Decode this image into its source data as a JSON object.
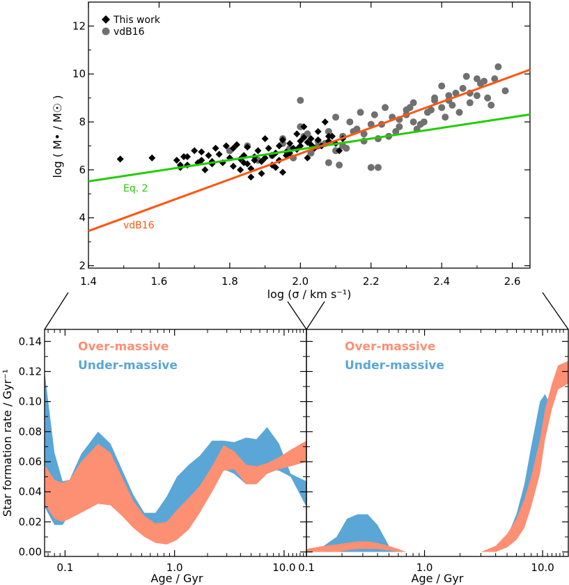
{
  "colors": {
    "green": "#22cc00",
    "orange": "#ff5511",
    "grey": "#707070",
    "over": "#fd8f73",
    "under": "#5aa6d6"
  },
  "chart_data": [
    {
      "type": "scatter",
      "xlabel": "log (σ / km s⁻¹)",
      "ylabel": "log ( M• / M☉ )",
      "xlim": [
        1.4,
        2.65
      ],
      "ylim": [
        1.9,
        13.0
      ],
      "xticks": [
        "1.4",
        "1.6",
        "1.8",
        "2.0",
        "2.2",
        "2.4",
        "2.6"
      ],
      "yticks": [
        "2",
        "4",
        "6",
        "8",
        "10",
        "12"
      ],
      "legend": {
        "placement": "top-left",
        "entries": [
          "This work",
          "vdB16"
        ]
      },
      "lines": [
        {
          "name": "Eq. 2",
          "x": [
            1.4,
            2.65
          ],
          "y": [
            5.52,
            8.31
          ]
        },
        {
          "name": "vdB16",
          "x": [
            1.4,
            2.65
          ],
          "y": [
            3.45,
            10.18
          ]
        }
      ],
      "series": [
        {
          "name": "This work",
          "marker": "diamond",
          "x": [
            1.49,
            1.58,
            1.65,
            1.66,
            1.67,
            1.68,
            1.7,
            1.71,
            1.72,
            1.73,
            1.74,
            1.75,
            1.76,
            1.78,
            1.79,
            1.8,
            1.81,
            1.82,
            1.83,
            1.84,
            1.85,
            1.86,
            1.87,
            1.88,
            1.89,
            1.9,
            1.91,
            1.92,
            1.93,
            1.94,
            1.95,
            1.96,
            1.97,
            1.98,
            1.99,
            2.0,
            2.01,
            2.02,
            2.03,
            2.04,
            2.05,
            2.06,
            2.07,
            2.08,
            2.09,
            2.1,
            2.11,
            2.12,
            1.66,
            1.72,
            1.77,
            1.81,
            1.84,
            1.87,
            1.9,
            1.93,
            1.96,
            1.99,
            2.02,
            2.05,
            1.85,
            1.89,
            1.94,
            1.97,
            2.0,
            2.03,
            1.68,
            1.75,
            1.83,
            1.92,
            2.08,
            1.86,
            1.95,
            2.01
          ],
          "y": [
            6.45,
            6.5,
            6.4,
            6.1,
            6.55,
            6.2,
            6.8,
            6.3,
            6.75,
            6.0,
            6.6,
            6.25,
            6.9,
            6.3,
            7.0,
            6.5,
            6.9,
            7.05,
            6.0,
            6.6,
            6.95,
            5.7,
            6.4,
            6.8,
            6.35,
            7.3,
            6.9,
            6.2,
            6.7,
            7.0,
            5.9,
            6.6,
            7.1,
            6.9,
            7.5,
            7.2,
            7.8,
            6.5,
            7.3,
            6.9,
            7.6,
            7.0,
            8.0,
            7.2,
            7.4,
            7.1,
            6.8,
            7.3,
            6.2,
            6.4,
            6.65,
            6.15,
            6.3,
            6.55,
            6.5,
            6.1,
            6.75,
            6.85,
            7.15,
            7.25,
            6.25,
            5.85,
            6.4,
            6.7,
            7.0,
            7.05,
            6.55,
            6.35,
            6.45,
            6.6,
            7.4,
            6.05,
            7.25,
            7.35
          ]
        },
        {
          "name": "vdB16",
          "marker": "circle",
          "x": [
            1.8,
            1.85,
            1.88,
            1.92,
            1.95,
            1.98,
            2.0,
            2.02,
            2.05,
            2.08,
            2.1,
            2.12,
            2.14,
            2.16,
            2.18,
            2.2,
            2.22,
            2.24,
            2.26,
            2.28,
            2.3,
            2.32,
            2.34,
            2.36,
            2.38,
            2.4,
            2.42,
            2.44,
            2.46,
            2.48,
            2.5,
            2.52,
            2.54,
            2.56,
            2.58,
            2.0,
            2.05,
            2.1,
            2.15,
            2.2,
            2.25,
            2.3,
            2.35,
            2.4,
            2.45,
            2.5,
            1.95,
            2.03,
            2.13,
            2.23,
            2.33,
            2.43,
            2.53,
            2.08,
            2.18,
            2.28,
            2.38,
            2.48,
            2.01,
            2.11,
            2.21,
            2.31,
            2.41,
            2.51,
            2.27,
            2.37,
            2.47,
            2.17,
            2.07,
            1.97,
            2.55,
            2.32,
            2.22,
            2.12,
            2.42
          ],
          "y": [
            6.8,
            7.0,
            6.4,
            6.6,
            7.1,
            6.5,
            8.9,
            7.5,
            7.0,
            7.6,
            6.8,
            7.4,
            8.0,
            7.7,
            7.2,
            7.9,
            6.1,
            8.6,
            8.2,
            7.8,
            8.3,
            8.8,
            7.9,
            8.4,
            9.0,
            8.6,
            8.9,
            9.2,
            9.4,
            8.8,
            9.1,
            9.7,
            8.7,
            10.3,
            9.3,
            7.8,
            7.2,
            8.2,
            7.6,
            6.1,
            7.4,
            8.5,
            8.0,
            9.5,
            8.4,
            9.8,
            7.3,
            6.7,
            6.9,
            7.9,
            7.7,
            8.7,
            9.0,
            6.3,
            7.5,
            8.1,
            8.9,
            9.2,
            7.4,
            6.2,
            8.3,
            8.6,
            8.2,
            9.6,
            7.6,
            8.5,
            9.9,
            8.4,
            7.1,
            6.9,
            9.8,
            8.0,
            7.3,
            7.0,
            9.1
          ]
        }
      ]
    },
    {
      "type": "area",
      "ylabel": "Star formation rate / Gyr⁻¹",
      "xlabel": "Age / Gyr",
      "xscale": "log",
      "xlim": [
        0.065,
        16.0
      ],
      "ylim": [
        -0.003,
        0.148
      ],
      "xticks": [
        "0.1",
        "1.0",
        "10.0"
      ],
      "yticks": [
        "0.00",
        "0.02",
        "0.04",
        "0.06",
        "0.08",
        "0.10",
        "0.12",
        "0.14"
      ],
      "legend": {
        "placement": "top-left",
        "entries": [
          "Over-massive",
          "Under-massive"
        ]
      },
      "series": [
        {
          "name": "Under-massive",
          "x": [
            0.065,
            0.08,
            0.095,
            0.11,
            0.14,
            0.2,
            0.26,
            0.33,
            0.42,
            0.53,
            0.67,
            0.85,
            1.05,
            1.35,
            1.7,
            2.2,
            2.8,
            3.5,
            4.5,
            5.6,
            7.0,
            9.0,
            11.5,
            16.0
          ],
          "upper": [
            0.12,
            0.066,
            0.047,
            0.048,
            0.065,
            0.08,
            0.072,
            0.055,
            0.038,
            0.026,
            0.026,
            0.037,
            0.05,
            0.058,
            0.064,
            0.074,
            0.074,
            0.073,
            0.076,
            0.075,
            0.083,
            0.072,
            0.052,
            0.047
          ],
          "lower": [
            0.03,
            0.018,
            0.018,
            0.025,
            0.033,
            0.038,
            0.035,
            0.028,
            0.022,
            0.018,
            0.016,
            0.018,
            0.022,
            0.028,
            0.035,
            0.045,
            0.055,
            0.052,
            0.045,
            0.046,
            0.055,
            0.054,
            0.05,
            0.03
          ]
        },
        {
          "name": "Over-massive",
          "x": [
            0.065,
            0.08,
            0.095,
            0.11,
            0.14,
            0.2,
            0.26,
            0.33,
            0.42,
            0.53,
            0.67,
            0.85,
            1.05,
            1.35,
            1.7,
            2.2,
            2.8,
            3.5,
            4.5,
            5.6,
            7.0,
            9.0,
            11.5,
            16.0
          ],
          "upper": [
            0.058,
            0.048,
            0.046,
            0.048,
            0.06,
            0.072,
            0.066,
            0.05,
            0.034,
            0.024,
            0.019,
            0.02,
            0.028,
            0.036,
            0.044,
            0.057,
            0.071,
            0.067,
            0.058,
            0.057,
            0.059,
            0.063,
            0.068,
            0.074
          ],
          "lower": [
            0.032,
            0.022,
            0.02,
            0.022,
            0.026,
            0.032,
            0.031,
            0.024,
            0.016,
            0.01,
            0.006,
            0.005,
            0.008,
            0.015,
            0.026,
            0.04,
            0.054,
            0.055,
            0.045,
            0.045,
            0.052,
            0.055,
            0.057,
            0.06
          ]
        }
      ]
    },
    {
      "type": "area",
      "xlabel": "Age / Gyr",
      "xscale": "log",
      "xlim": [
        0.1,
        16.5
      ],
      "ylim": [
        -0.003,
        0.148
      ],
      "xticks": [
        "0.1",
        "1.0",
        "10.0"
      ],
      "legend": {
        "placement": "top-left",
        "entries": [
          "Over-massive",
          "Under-massive"
        ]
      },
      "series": [
        {
          "name": "Under-massive",
          "x": [
            0.1,
            0.14,
            0.18,
            0.22,
            0.27,
            0.33,
            0.4,
            0.5,
            0.6,
            0.7,
            1.2,
            2.0,
            3.0,
            4.0,
            5.0,
            6.0,
            7.0,
            8.0,
            9.5,
            10.5,
            12.0,
            13.5,
            16.5
          ],
          "upper": [
            0.0,
            0.004,
            0.01,
            0.022,
            0.025,
            0.025,
            0.018,
            0.004,
            0.0,
            0.0,
            0.0,
            0.0,
            0.0,
            0.002,
            0.01,
            0.025,
            0.045,
            0.07,
            0.1,
            0.105,
            0.095,
            0.1,
            0.075
          ],
          "lower": [
            0.0,
            0.0,
            0.0,
            0.0,
            0.0,
            0.0,
            0.0,
            0.0,
            0.0,
            0.0,
            0.0,
            0.0,
            0.0,
            0.0,
            0.004,
            0.01,
            0.022,
            0.04,
            0.06,
            0.078,
            0.095,
            0.1,
            0.075
          ]
        },
        {
          "name": "Over-massive",
          "x": [
            0.1,
            0.14,
            0.18,
            0.22,
            0.27,
            0.33,
            0.4,
            0.5,
            0.6,
            0.7,
            1.2,
            2.0,
            3.0,
            4.0,
            5.0,
            6.0,
            7.0,
            8.0,
            9.5,
            10.5,
            12.0,
            13.5,
            16.5
          ],
          "upper": [
            0.002,
            0.004,
            0.005,
            0.006,
            0.007,
            0.007,
            0.006,
            0.004,
            0.002,
            0.0,
            0.0,
            0.0,
            0.0,
            0.004,
            0.012,
            0.022,
            0.035,
            0.05,
            0.075,
            0.095,
            0.112,
            0.124,
            0.127
          ],
          "lower": [
            0.0,
            0.0,
            0.0,
            0.001,
            0.002,
            0.002,
            0.002,
            0.001,
            0.0,
            0.0,
            0.0,
            0.0,
            0.0,
            0.0,
            0.003,
            0.008,
            0.016,
            0.03,
            0.052,
            0.075,
            0.095,
            0.108,
            0.112
          ]
        }
      ]
    }
  ]
}
